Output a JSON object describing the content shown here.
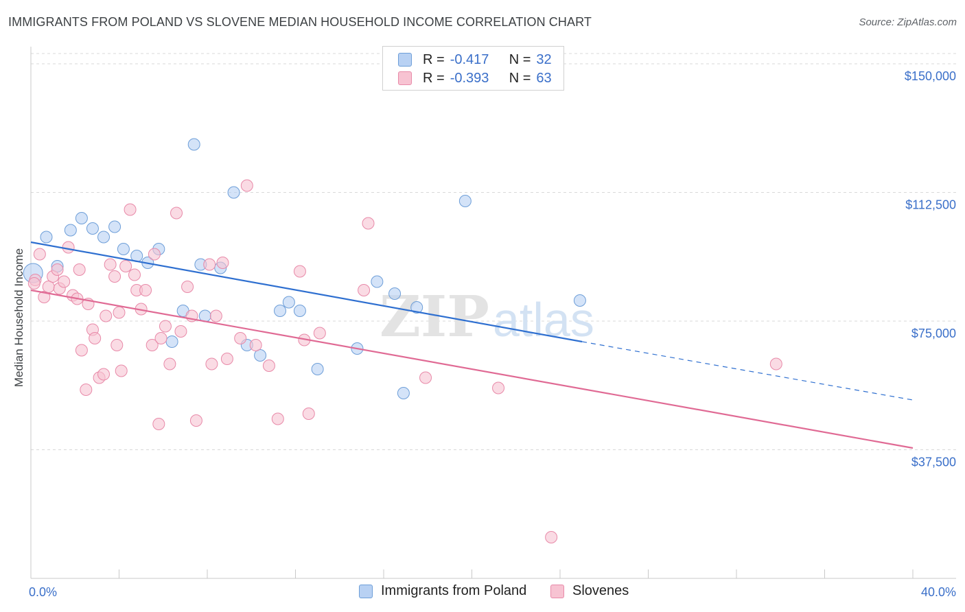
{
  "title": "IMMIGRANTS FROM POLAND VS SLOVENE MEDIAN HOUSEHOLD INCOME CORRELATION CHART",
  "source": "Source: ZipAtlas.com",
  "watermark": {
    "zip": "ZIP",
    "atlas": "atlas"
  },
  "legend": {
    "r_label": "R =",
    "n_label": "N =",
    "poland": {
      "r": "-0.417",
      "n": "32"
    },
    "slovenes": {
      "r": "-0.393",
      "n": "63"
    }
  },
  "colors": {
    "poland_fill": "#b8d1f3",
    "poland_stroke": "#6d9ed8",
    "poland_line": "#2e6fd0",
    "slovene_fill": "#f7c3d2",
    "slovene_stroke": "#e889a8",
    "slovene_line": "#e06a94",
    "axis_text": "#3a6fc9",
    "grid": "#d8d8d8"
  },
  "chart_data": {
    "type": "scatter",
    "title": "IMMIGRANTS FROM POLAND VS SLOVENE MEDIAN HOUSEHOLD INCOME CORRELATION CHART",
    "xlabel": "",
    "ylabel": "Median Household Income",
    "xlim": [
      0,
      40
    ],
    "ylim": [
      0,
      153000
    ],
    "x_tick_labels": [
      "0.0%",
      "40.0%"
    ],
    "y_ticks": [
      37500,
      75000,
      112500,
      150000
    ],
    "y_tick_labels": [
      "$37,500",
      "$75,000",
      "$112,500",
      "$150,000"
    ],
    "grid": true,
    "series": [
      {
        "name": "Immigrants from Poland",
        "r": -0.417,
        "n": 32,
        "trend": {
          "x_start": 0,
          "y_start": 98000,
          "x_end": 25,
          "y_end": 69000,
          "dash_to_x": 40,
          "dash_to_y": 52000
        },
        "points": [
          [
            0.1,
            89000
          ],
          [
            0.7,
            99500
          ],
          [
            1.2,
            91000
          ],
          [
            1.8,
            101500
          ],
          [
            2.3,
            105000
          ],
          [
            2.8,
            102000
          ],
          [
            3.3,
            99500
          ],
          [
            3.8,
            102500
          ],
          [
            4.2,
            96000
          ],
          [
            4.8,
            94000
          ],
          [
            5.3,
            92000
          ],
          [
            5.8,
            96000
          ],
          [
            6.4,
            69000
          ],
          [
            6.9,
            78000
          ],
          [
            7.4,
            126500
          ],
          [
            7.7,
            91500
          ],
          [
            7.9,
            76500
          ],
          [
            8.6,
            90500
          ],
          [
            9.2,
            112500
          ],
          [
            9.8,
            68000
          ],
          [
            10.4,
            65000
          ],
          [
            11.3,
            78000
          ],
          [
            11.7,
            80500
          ],
          [
            12.2,
            78000
          ],
          [
            13.0,
            61000
          ],
          [
            14.8,
            67000
          ],
          [
            15.7,
            86500
          ],
          [
            16.5,
            83000
          ],
          [
            16.9,
            54000
          ],
          [
            17.5,
            79000
          ],
          [
            19.7,
            110000
          ],
          [
            24.9,
            81000
          ]
        ]
      },
      {
        "name": "Slovenes",
        "r": -0.393,
        "n": 63,
        "trend": {
          "x_start": 0,
          "y_start": 84000,
          "x_end": 40,
          "y_end": 38000
        },
        "points": [
          [
            0.2,
            87000
          ],
          [
            0.4,
            94500
          ],
          [
            0.6,
            82000
          ],
          [
            0.8,
            85000
          ],
          [
            1.0,
            88000
          ],
          [
            1.2,
            90000
          ],
          [
            1.3,
            84500
          ],
          [
            1.5,
            86500
          ],
          [
            1.7,
            96500
          ],
          [
            1.9,
            82500
          ],
          [
            2.1,
            81500
          ],
          [
            2.2,
            90000
          ],
          [
            2.3,
            66500
          ],
          [
            2.5,
            55000
          ],
          [
            2.6,
            80000
          ],
          [
            2.8,
            72500
          ],
          [
            2.9,
            70000
          ],
          [
            3.1,
            58500
          ],
          [
            3.3,
            59500
          ],
          [
            3.4,
            76500
          ],
          [
            3.6,
            91500
          ],
          [
            3.8,
            88000
          ],
          [
            3.9,
            68000
          ],
          [
            4.0,
            77500
          ],
          [
            4.1,
            60500
          ],
          [
            4.3,
            91000
          ],
          [
            4.5,
            107500
          ],
          [
            4.7,
            88500
          ],
          [
            4.8,
            84000
          ],
          [
            5.0,
            78500
          ],
          [
            5.2,
            84000
          ],
          [
            5.5,
            68000
          ],
          [
            5.6,
            94500
          ],
          [
            5.8,
            45000
          ],
          [
            5.9,
            70000
          ],
          [
            6.1,
            73500
          ],
          [
            6.3,
            62500
          ],
          [
            6.6,
            106500
          ],
          [
            6.8,
            72000
          ],
          [
            7.1,
            85000
          ],
          [
            7.3,
            76500
          ],
          [
            7.5,
            46000
          ],
          [
            8.1,
            91500
          ],
          [
            8.2,
            62500
          ],
          [
            8.4,
            76500
          ],
          [
            8.7,
            92000
          ],
          [
            8.9,
            64000
          ],
          [
            9.5,
            70000
          ],
          [
            9.8,
            114500
          ],
          [
            10.2,
            68000
          ],
          [
            10.8,
            62000
          ],
          [
            11.2,
            46500
          ],
          [
            12.2,
            89500
          ],
          [
            12.4,
            69500
          ],
          [
            12.6,
            48000
          ],
          [
            13.1,
            71500
          ],
          [
            15.1,
            84000
          ],
          [
            15.3,
            103500
          ],
          [
            17.9,
            58500
          ],
          [
            21.2,
            55500
          ],
          [
            23.6,
            12000
          ],
          [
            33.8,
            62500
          ],
          [
            0.15,
            86000
          ]
        ]
      }
    ]
  },
  "bottom_legend": {
    "poland": "Immigrants from Poland",
    "slovenes": "Slovenes"
  }
}
